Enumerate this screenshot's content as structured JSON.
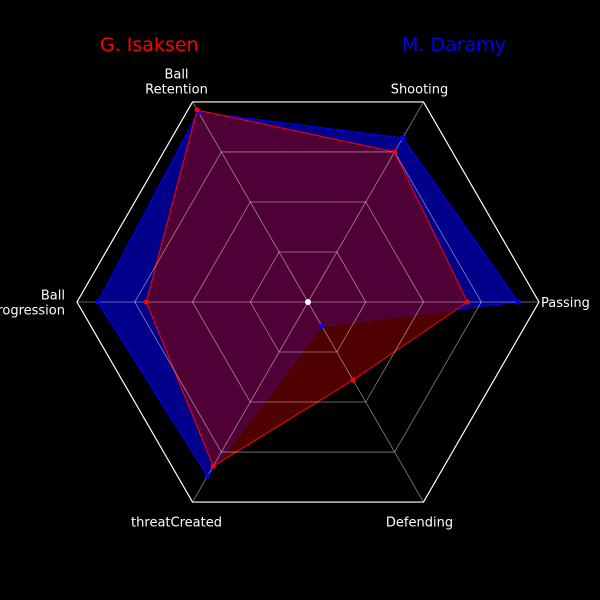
{
  "chart_data": {
    "type": "radar",
    "axes": [
      {
        "label_lines": [
          "Passing"
        ],
        "max": 100
      },
      {
        "label_lines": [
          "Shooting"
        ],
        "max": 100
      },
      {
        "label_lines": [
          "Ball",
          "Retention"
        ],
        "max": 100
      },
      {
        "label_lines": [
          "Ball",
          "Progression"
        ],
        "max": 100
      },
      {
        "label_lines": [
          "threatCreated"
        ],
        "max": 100
      },
      {
        "label_lines": [
          "Defending"
        ],
        "max": 100
      }
    ],
    "rings": 4,
    "series": [
      {
        "name": "M. Daramy",
        "values": [
          91,
          82,
          95,
          91,
          87,
          12
        ],
        "color": "#0000ff",
        "fill": "#00008b"
      },
      {
        "name": "G. Isaksen",
        "values": [
          69,
          75,
          96,
          70,
          82,
          39
        ],
        "color": "#ff0000",
        "fill": "#800000"
      }
    ],
    "legend": {
      "left": "G. Isaksen",
      "right": "M. Daramy"
    },
    "background": "#000000",
    "grid_color": "#ffffff"
  }
}
